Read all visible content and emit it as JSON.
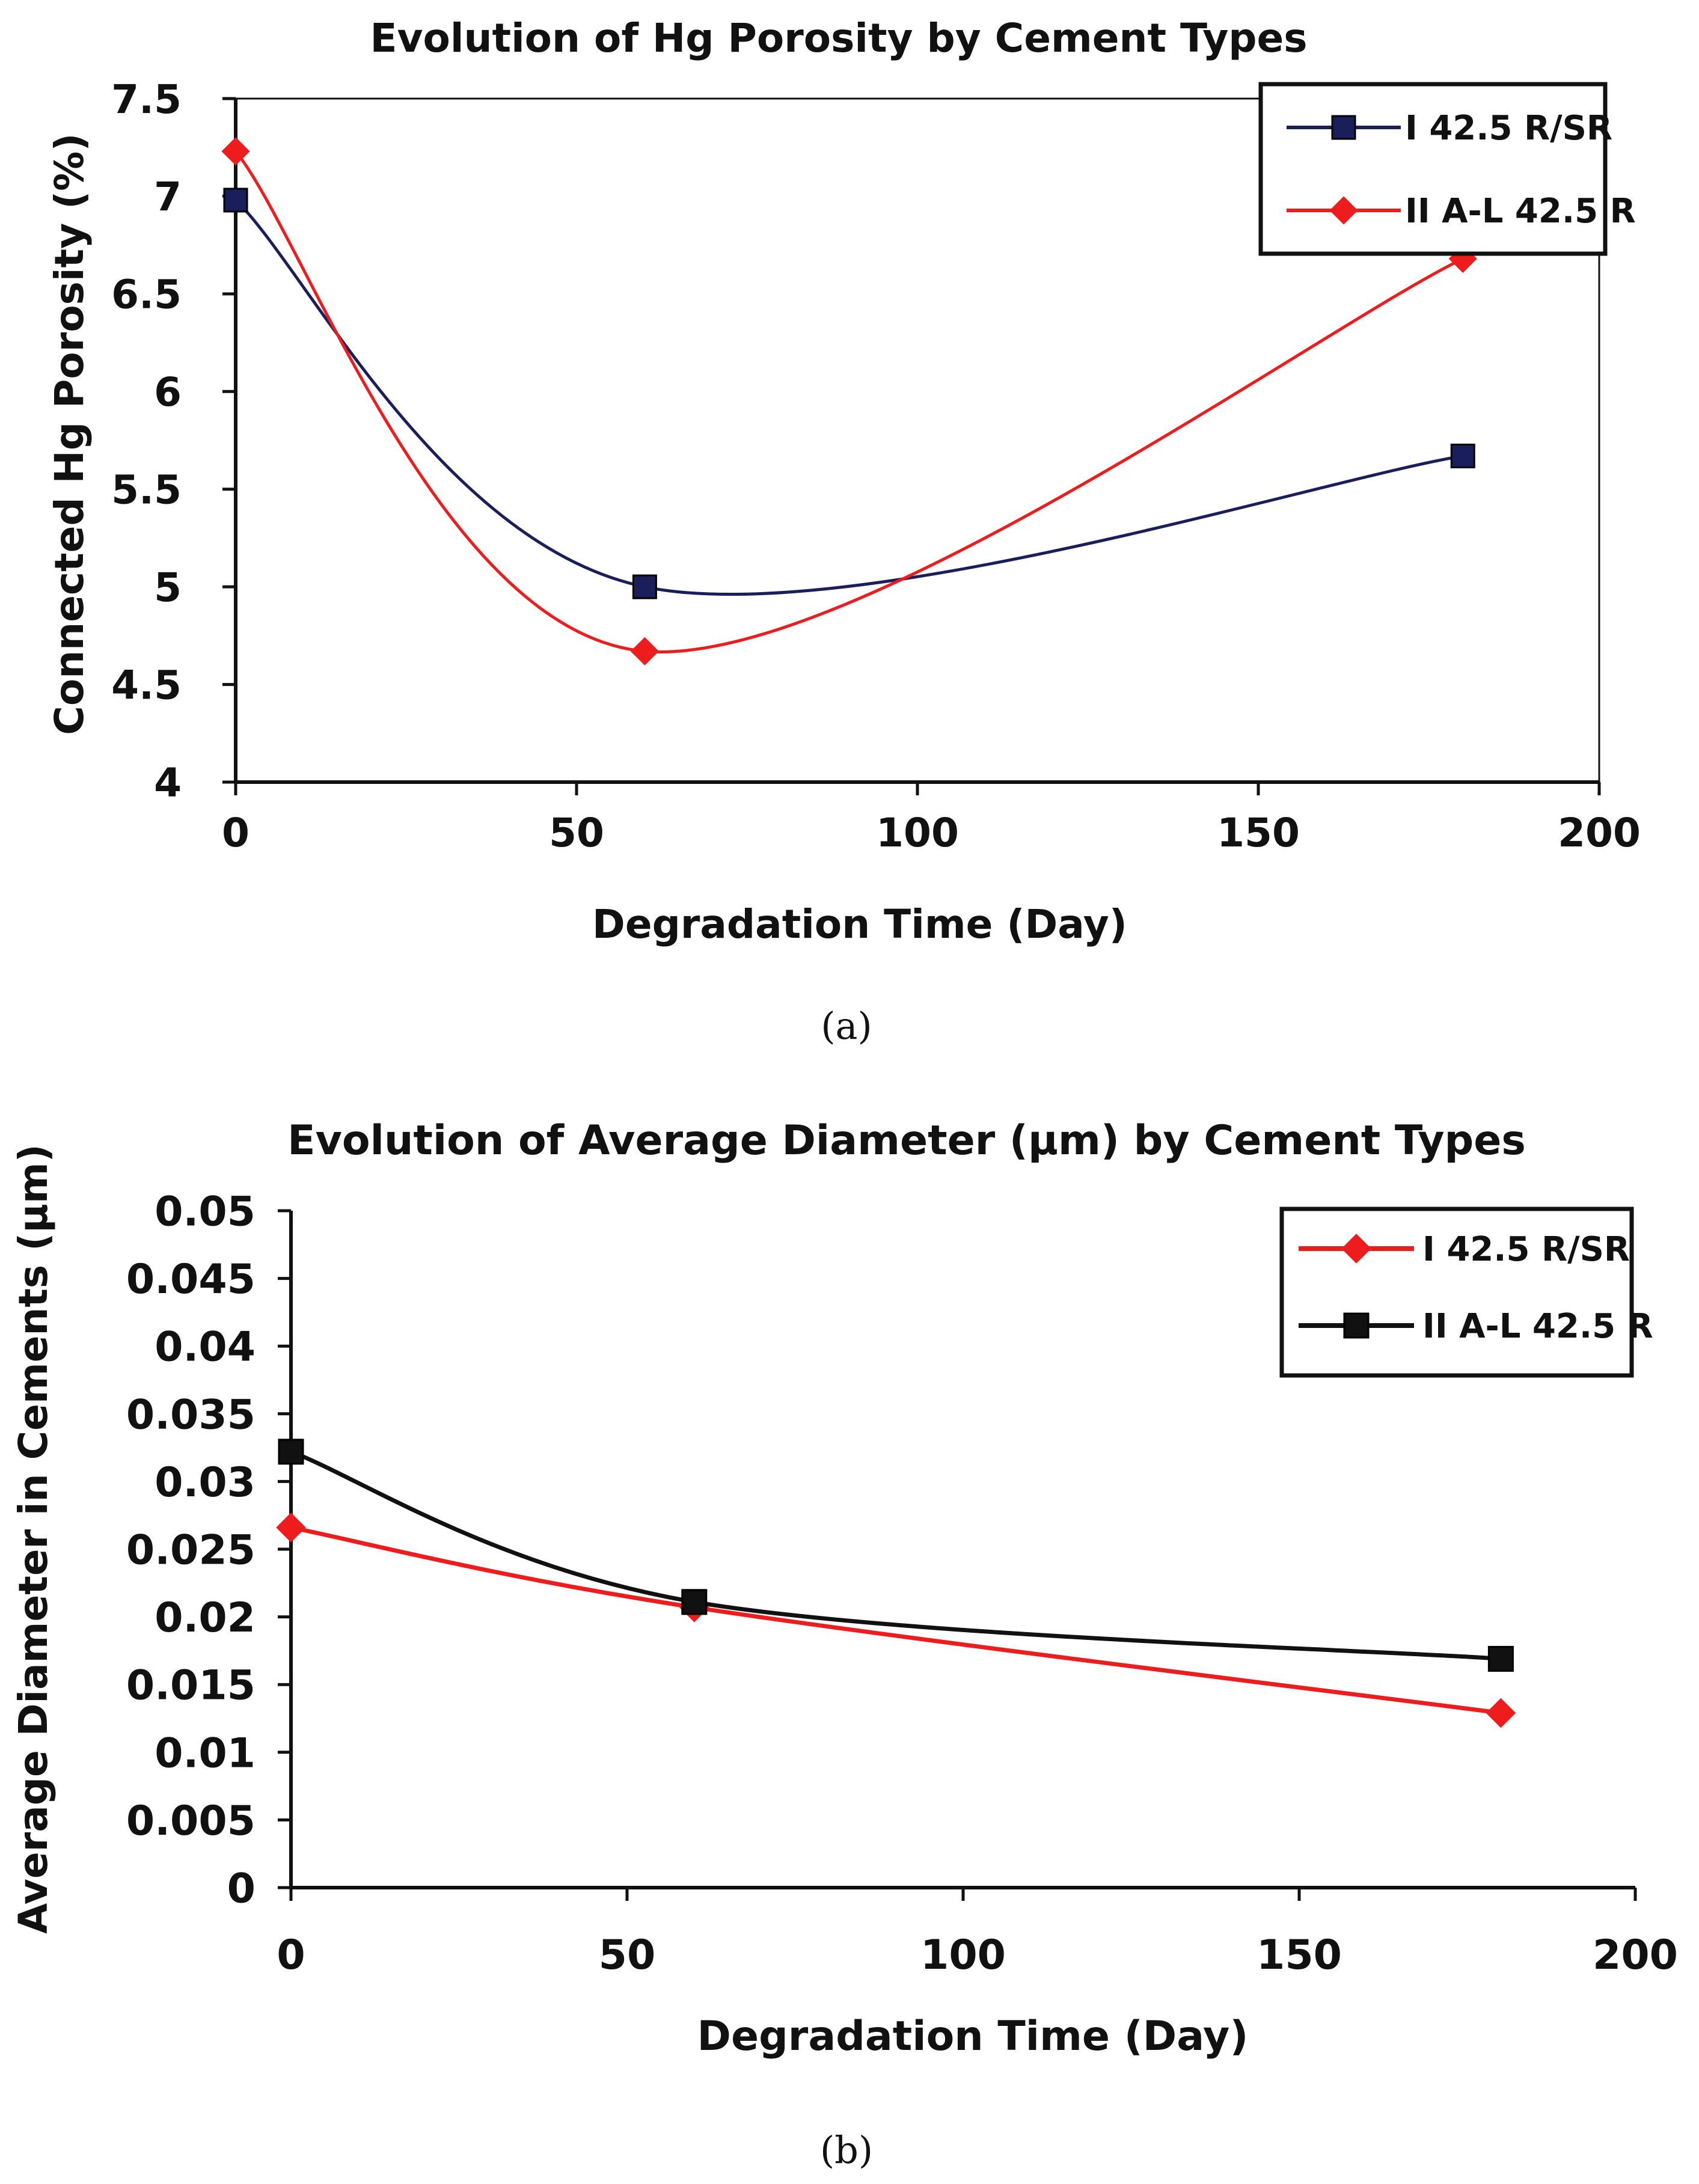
{
  "chart_data": [
    {
      "type": "line",
      "panel": "(a)",
      "title": "Evolution of Hg Porosity by Cement Types",
      "xlabel": "Degradation Time (Day)",
      "ylabel": "Connected Hg Porosity (%)",
      "xlim": [
        0,
        200
      ],
      "ylim": [
        4,
        7.5
      ],
      "xticks": [
        "0",
        "50",
        "100",
        "150",
        "200"
      ],
      "yticks": [
        "4",
        "4.5",
        "5",
        "5.5",
        "6",
        "6.5",
        "7",
        "7.5"
      ],
      "x": [
        0,
        60,
        180
      ],
      "series": [
        {
          "name": "I 42.5 R/SR",
          "values": [
            6.98,
            5.0,
            5.67
          ],
          "color": "#1a1f5c",
          "marker": "square"
        },
        {
          "name": "II A-L 42.5 R",
          "values": [
            7.23,
            4.67,
            6.68
          ],
          "color": "#ee1c1c",
          "marker": "diamond"
        }
      ],
      "legend_position": "top-right",
      "grid": false
    },
    {
      "type": "line",
      "panel": "(b)",
      "title": "Evolution of Average Diameter (μm) by Cement Types",
      "xlabel": "Degradation Time (Day)",
      "ylabel": "Average Diameter in Cements (μm)",
      "xlim": [
        0,
        200
      ],
      "ylim": [
        0,
        0.05
      ],
      "xticks": [
        "0",
        "50",
        "100",
        "150",
        "200"
      ],
      "yticks": [
        "0",
        "0.005",
        "0.01",
        "0.015",
        "0.02",
        "0.025",
        "0.03",
        "0.035",
        "0.04",
        "0.045",
        "0.05"
      ],
      "x": [
        0,
        60,
        180
      ],
      "series": [
        {
          "name": "I 42.5 R/SR",
          "values": [
            0.0266,
            0.0207,
            0.0129
          ],
          "color": "#ee1c1c",
          "marker": "diamond"
        },
        {
          "name": "II A-L 42.5 R",
          "values": [
            0.0322,
            0.0211,
            0.0169
          ],
          "color": "#111111",
          "marker": "square"
        }
      ],
      "legend_position": "top-right",
      "grid": false
    }
  ]
}
